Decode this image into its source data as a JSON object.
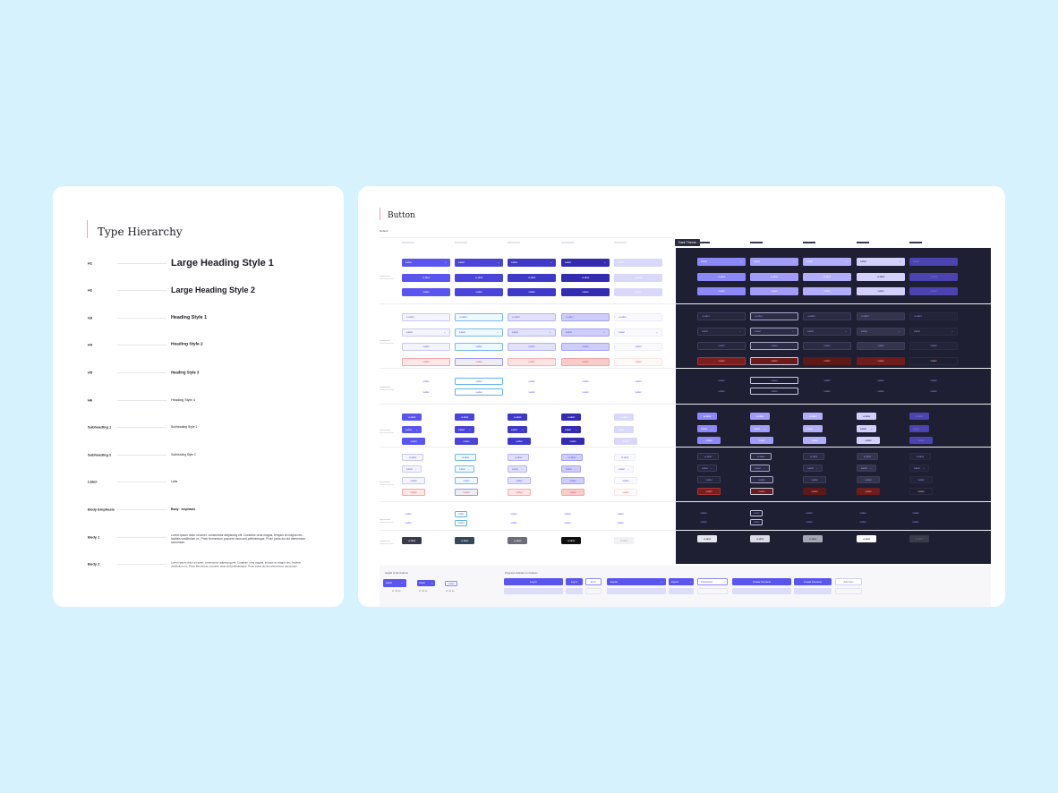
{
  "type_hierarchy": {
    "title": "Type Hierarchy",
    "rows": [
      {
        "key": "H1",
        "sample": "Large Heading Style 1"
      },
      {
        "key": "H2",
        "sample": "Large Heading Style 2"
      },
      {
        "key": "H3",
        "sample": "Heading Style 1"
      },
      {
        "key": "H4",
        "sample": "Heading Style 2"
      },
      {
        "key": "H5",
        "sample": "Heading Style 3"
      },
      {
        "key": "H6",
        "sample": "Heading Style 4"
      },
      {
        "key": "Subheading 1",
        "sample": "Subheading Style 1"
      },
      {
        "key": "Subheading 2",
        "sample": "Subheading Style 2"
      },
      {
        "key": "Label",
        "sample": "Labs"
      },
      {
        "key": "Body Emphasis",
        "sample": "Body · emphasis"
      },
      {
        "key": "Body 1",
        "sample": "Lorem ipsum dolor sit amet, consectetur adipiscing elit. Curabitur urna magna, tempus at magna nec, facilisis vestibulum ex. Proin fermentum posuere risus sed pellentesque. Proin porta dui dui elementum accumsan."
      },
      {
        "key": "Body 2",
        "sample": "Lorem ipsum dolor sit amet, consectetur adipiscing elit. Curabitur urna magna, tempus at magna nec, facilisis vestibulum ex. Proin fermentum posuere risus sed pellentesque. Proin porta dui dui elementum accumsan."
      }
    ]
  },
  "button_sheet": {
    "title": "Button",
    "default_label": "Default",
    "dark_theme_label": "Dark Theme",
    "button_label": "Label",
    "bottom": {
      "height_title": "Height of the buttons",
      "progress_title": "Progress Indicator on buttons",
      "heights": [
        "H: 40 px",
        "H: 32 px",
        "H: 24 px"
      ],
      "actions": [
        "Log In",
        "Log in",
        "Error",
        "Export",
        "Export",
        "Download",
        "Create Scenario",
        "Create Scenario",
        "Add Item"
      ]
    }
  },
  "colors": {
    "page_bg": "#d6f2fd",
    "primary": "#5b55f0",
    "primary_dark": "#3d36c6",
    "dark_panel": "#1e1f33",
    "danger": "#f8d3d3"
  }
}
